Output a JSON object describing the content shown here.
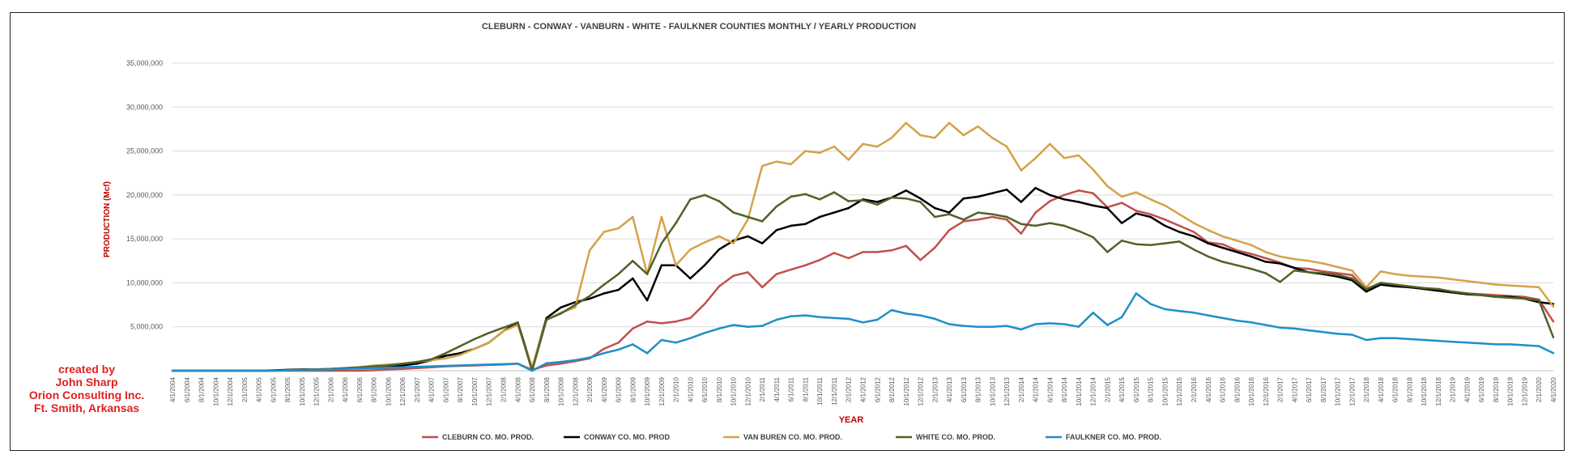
{
  "credit": {
    "line1": "created by",
    "line2": "John Sharp",
    "line3": "Orion Consulting Inc.",
    "line4": "Ft. Smith, Arkansas"
  },
  "chart_data": {
    "type": "line",
    "title": "CLEBURN - CONWAY - VANBURN - WHITE - FAULKNER COUNTIES MONTHLY / YEARLY PRODUCTION",
    "xlabel": "YEAR",
    "ylabel": "PRODUCTION (Mcf)",
    "ylim": [
      0,
      35000000
    ],
    "yticks": [
      "",
      "5,000,000",
      "10,000,000",
      "15,000,000",
      "20,000,000",
      "25,000,000",
      "30,000,000",
      "35,000,000"
    ],
    "grid": true,
    "legend_position": "bottom",
    "x_tick_labels": [
      "4/1/2004",
      "6/1/2004",
      "8/1/2004",
      "10/1/2004",
      "12/1/2004",
      "2/1/2005",
      "4/1/2005",
      "6/1/2005",
      "8/1/2005",
      "10/1/2005",
      "12/1/2005",
      "2/1/2006",
      "4/1/2006",
      "6/1/2006",
      "8/1/2006",
      "10/1/2006",
      "12/1/2006",
      "2/1/2007",
      "4/1/2007",
      "6/1/2007",
      "8/1/2007",
      "10/1/2007",
      "12/1/2007",
      "2/1/2008",
      "4/1/2008",
      "6/1/2008",
      "8/1/2008",
      "10/1/2008",
      "12/1/2008",
      "2/1/2009",
      "4/1/2009",
      "6/1/2009",
      "8/1/2009",
      "10/1/2009",
      "12/1/2009",
      "2/1/2010",
      "4/1/2010",
      "6/1/2010",
      "8/1/2010",
      "10/1/2010",
      "12/1/2010",
      "2/1/2011",
      "4/1/2011",
      "6/1/2011",
      "8/1/2011",
      "10/1/2011",
      "12/1/2011",
      "2/1/2012",
      "4/1/2012",
      "6/1/2012",
      "8/1/2012",
      "10/1/2012",
      "12/1/2012",
      "2/1/2013",
      "4/1/2013",
      "6/1/2013",
      "8/1/2013",
      "10/1/2013",
      "12/1/2013",
      "2/1/2014",
      "4/1/2014",
      "6/1/2014",
      "8/1/2014",
      "10/1/2014",
      "12/1/2014",
      "2/1/2015",
      "4/1/2015",
      "6/1/2015",
      "8/1/2015",
      "10/1/2015",
      "12/1/2015",
      "2/1/2016",
      "4/1/2016",
      "6/1/2016",
      "8/1/2016",
      "10/1/2016",
      "12/1/2016",
      "2/1/2017",
      "4/1/2017",
      "6/1/2017",
      "8/1/2017",
      "10/1/2017",
      "12/1/2017",
      "2/1/2018",
      "4/1/2018",
      "6/1/2018",
      "8/1/2018",
      "10/1/2018",
      "12/1/2018",
      "2/1/2019",
      "4/1/2019",
      "6/1/2019",
      "8/1/2019",
      "10/1/2019",
      "12/1/2019",
      "2/1/2020",
      "4/1/2020"
    ],
    "series": [
      {
        "name": "CLEBURN CO. MO. PROD.",
        "color": "#c0504d",
        "values": [
          0,
          0,
          0,
          0,
          0,
          0,
          0,
          0,
          0,
          0,
          0,
          0,
          0,
          0,
          50000,
          150000,
          200000,
          300000,
          400000,
          500000,
          550000,
          600000,
          650000,
          700000,
          800000,
          100000,
          600000,
          800000,
          1100000,
          1400000,
          2500000,
          3200000,
          4800000,
          5600000,
          5400000,
          5600000,
          6000000,
          7600000,
          9600000,
          10800000,
          11200000,
          9500000,
          11000000,
          11500000,
          12000000,
          12600000,
          13400000,
          12800000,
          13500000,
          13500000,
          13700000,
          14200000,
          12600000,
          14000000,
          16000000,
          17000000,
          17200000,
          17500000,
          17200000,
          15600000,
          18000000,
          19300000,
          20000000,
          20500000,
          20200000,
          18600000,
          19100000,
          18200000,
          17800000,
          17200000,
          16500000,
          15800000,
          14600000,
          14400000,
          13700000,
          13300000,
          12800000,
          12300000,
          11700000,
          11600000,
          11300000,
          11100000,
          10900000,
          9200000,
          9900000,
          9700000,
          9500000,
          9400000,
          9200000,
          9000000,
          8800000,
          8700000,
          8600000,
          8500000,
          8400000,
          8100000,
          5600000
        ]
      },
      {
        "name": "CONWAY CO. MO. PROD",
        "color": "#000000",
        "values": [
          0,
          0,
          0,
          0,
          0,
          0,
          0,
          50000,
          100000,
          150000,
          150000,
          200000,
          250000,
          300000,
          400000,
          500000,
          600000,
          800000,
          1200000,
          1700000,
          2000000,
          2500000,
          3200000,
          4500000,
          5500000,
          300000,
          6000000,
          7200000,
          7800000,
          8200000,
          8800000,
          9200000,
          10500000,
          8000000,
          12000000,
          12000000,
          10500000,
          12000000,
          13800000,
          14800000,
          15300000,
          14500000,
          16000000,
          16500000,
          16700000,
          17500000,
          18000000,
          18500000,
          19500000,
          19200000,
          19700000,
          20500000,
          19600000,
          18500000,
          18000000,
          19600000,
          19800000,
          20200000,
          20600000,
          19200000,
          20800000,
          20000000,
          19500000,
          19200000,
          18800000,
          18500000,
          16800000,
          17900000,
          17500000,
          16500000,
          15800000,
          15300000,
          14500000,
          14000000,
          13500000,
          13000000,
          12400000,
          12200000,
          11700000,
          11200000,
          11000000,
          10700000,
          10300000,
          9000000,
          9800000,
          9600000,
          9500000,
          9300000,
          9100000,
          8900000,
          8700000,
          8600000,
          8400000,
          8400000,
          8200000,
          7800000,
          7600000
        ]
      },
      {
        "name": "VAN BUREN CO. MO. PROD.",
        "color": "#d4a24a",
        "values": [
          0,
          0,
          0,
          0,
          0,
          0,
          0,
          0,
          50000,
          100000,
          150000,
          200000,
          300000,
          400000,
          600000,
          700000,
          800000,
          1000000,
          1200000,
          1400000,
          1800000,
          2500000,
          3200000,
          4500000,
          5200000,
          400000,
          5800000,
          6600000,
          7200000,
          13700000,
          15800000,
          16200000,
          17500000,
          11000000,
          17500000,
          12000000,
          13800000,
          14600000,
          15300000,
          14500000,
          17200000,
          23300000,
          23800000,
          23500000,
          25000000,
          24800000,
          25500000,
          24000000,
          25800000,
          25500000,
          26500000,
          28200000,
          26800000,
          26500000,
          28200000,
          26800000,
          27800000,
          26500000,
          25500000,
          22800000,
          24200000,
          25800000,
          24200000,
          24500000,
          22900000,
          21000000,
          19800000,
          20300000,
          19500000,
          18800000,
          17800000,
          16800000,
          16000000,
          15300000,
          14800000,
          14300000,
          13500000,
          13000000,
          12700000,
          12500000,
          12200000,
          11800000,
          11400000,
          9500000,
          11300000,
          11000000,
          10800000,
          10700000,
          10600000,
          10400000,
          10200000,
          10000000,
          9800000,
          9700000,
          9600000,
          9500000,
          7300000
        ]
      },
      {
        "name": "WHITE CO. MO. PROD.",
        "color": "#4f6228",
        "values": [
          0,
          0,
          0,
          0,
          0,
          0,
          0,
          0,
          50000,
          100000,
          150000,
          200000,
          300000,
          400000,
          500000,
          600000,
          800000,
          1000000,
          1300000,
          2000000,
          2800000,
          3600000,
          4300000,
          4900000,
          5500000,
          0,
          5800000,
          6500000,
          7500000,
          8500000,
          9800000,
          11000000,
          12500000,
          11000000,
          14500000,
          16800000,
          19500000,
          20000000,
          19300000,
          18000000,
          17500000,
          17000000,
          18700000,
          19800000,
          20100000,
          19500000,
          20300000,
          19300000,
          19400000,
          18900000,
          19700000,
          19600000,
          19200000,
          17500000,
          17800000,
          17200000,
          18000000,
          17800000,
          17500000,
          16700000,
          16500000,
          16800000,
          16500000,
          15900000,
          15200000,
          13500000,
          14800000,
          14400000,
          14300000,
          14500000,
          14700000,
          13800000,
          13000000,
          12400000,
          12000000,
          11600000,
          11100000,
          10100000,
          11400000,
          11200000,
          11100000,
          10900000,
          10500000,
          9300000,
          10000000,
          9800000,
          9600000,
          9400000,
          9300000,
          9000000,
          8800000,
          8600000,
          8400000,
          8300000,
          8200000,
          8000000,
          3800000
        ]
      },
      {
        "name": "FAULKNER CO. MO. PROD.",
        "color": "#1f8fc9",
        "values": [
          0,
          0,
          0,
          0,
          0,
          0,
          0,
          0,
          50000,
          80000,
          100000,
          150000,
          200000,
          250000,
          300000,
          350000,
          400000,
          450000,
          500000,
          550000,
          600000,
          650000,
          700000,
          750000,
          800000,
          0,
          850000,
          1000000,
          1200000,
          1500000,
          2000000,
          2400000,
          3000000,
          2000000,
          3500000,
          3200000,
          3700000,
          4300000,
          4800000,
          5200000,
          5000000,
          5100000,
          5800000,
          6200000,
          6300000,
          6100000,
          6000000,
          5900000,
          5500000,
          5800000,
          6900000,
          6500000,
          6300000,
          5900000,
          5300000,
          5100000,
          5000000,
          5000000,
          5100000,
          4700000,
          5300000,
          5400000,
          5300000,
          5000000,
          6600000,
          5200000,
          6100000,
          8800000,
          7600000,
          7000000,
          6800000,
          6600000,
          6300000,
          6000000,
          5700000,
          5500000,
          5200000,
          4900000,
          4800000,
          4600000,
          4400000,
          4200000,
          4100000,
          3500000,
          3700000,
          3700000,
          3600000,
          3500000,
          3400000,
          3300000,
          3200000,
          3100000,
          3000000,
          3000000,
          2900000,
          2800000,
          2000000
        ]
      }
    ]
  }
}
